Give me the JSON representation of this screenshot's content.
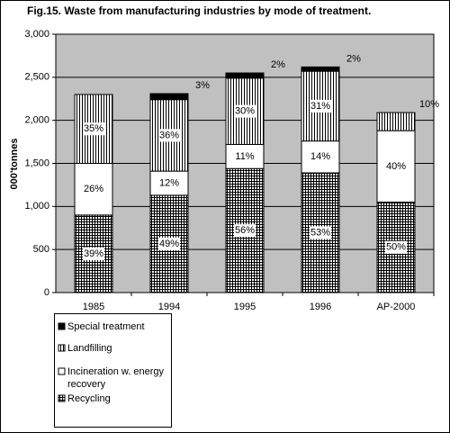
{
  "chart_data": {
    "type": "stacked_bar",
    "title": "Fig.15. Waste from manufacturing industries by mode of treatment.",
    "y_label": "000'tonnes",
    "categories": [
      "1985",
      "1994",
      "1995",
      "1996",
      "AP-2000"
    ],
    "series": [
      {
        "name": "Recycling",
        "pattern": "grid",
        "color": "#000000",
        "values": [
          900,
          1130,
          1440,
          1390,
          1050
        ],
        "share_labels": [
          "39%",
          "49%",
          "56%",
          "53%",
          "50%"
        ]
      },
      {
        "name": "Incineration w. energy recovery",
        "pattern": "none",
        "color": "#000000",
        "values": [
          600,
          280,
          280,
          370,
          830
        ],
        "share_labels": [
          "26%",
          "12%",
          "11%",
          "14%",
          "40%"
        ]
      },
      {
        "name": "Landfilling",
        "pattern": "vertical",
        "color": "#000000",
        "values": [
          800,
          830,
          770,
          810,
          210
        ],
        "share_labels": [
          "35%",
          "36%",
          "30%",
          "31%",
          "10%"
        ]
      },
      {
        "name": "Special treatment",
        "pattern": "solid",
        "color": "#000000",
        "values": [
          0,
          70,
          60,
          50,
          0
        ],
        "share_labels": [
          null,
          "3%",
          "2%",
          "2%",
          null
        ]
      }
    ],
    "ylim": [
      0,
      3000
    ],
    "yticks": [
      0,
      500,
      {
        "value": 1000,
        "label": "1,000"
      },
      {
        "value": 1500,
        "label": "1,500"
      },
      {
        "value": 2000,
        "label": "2,000"
      },
      {
        "value": 2500,
        "label": "2,500"
      },
      {
        "value": 3000,
        "label": "3,000"
      }
    ],
    "grid": true,
    "legend": "bottom-left"
  }
}
